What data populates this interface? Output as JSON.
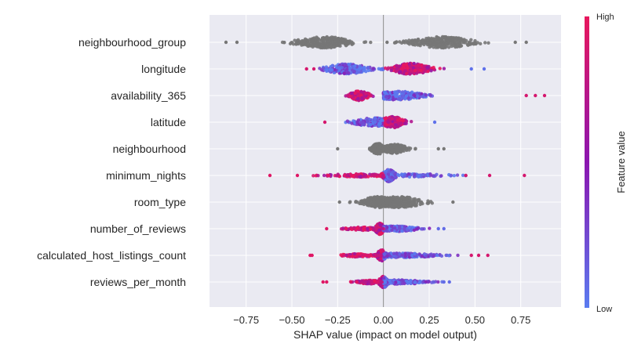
{
  "chart_data": {
    "type": "scatter",
    "subtype": "shap-beeswarm",
    "title": "",
    "xlabel": "SHAP value (impact on model output)",
    "ylabel": "",
    "xlim": [
      -0.95,
      0.97
    ],
    "xticks": [
      -0.75,
      -0.5,
      -0.25,
      0.0,
      0.25,
      0.5,
      0.75
    ],
    "xtick_labels": [
      "−0.75",
      "−0.50",
      "−0.25",
      "0.00",
      "0.25",
      "0.50",
      "0.75"
    ],
    "grid": true,
    "colorbar": {
      "title": "Feature value",
      "high_label": "High",
      "low_label": "Low",
      "high_color": "#e8175d",
      "mid_color": "#8b16b0",
      "low_color": "#5a7bf0"
    },
    "features": [
      {
        "name": "neighbourhood_group",
        "colored": false,
        "clusters": [
          {
            "center": -0.32,
            "spread": 0.09,
            "height": 0.42,
            "min": -0.86,
            "max": -0.05,
            "count": 260
          },
          {
            "center": 0.32,
            "spread": 0.1,
            "height": 0.42,
            "min": 0.05,
            "max": 0.78,
            "count": 260
          }
        ],
        "outliers": [
          -0.86,
          -0.8,
          0.02,
          0.72,
          0.78
        ]
      },
      {
        "name": "longitude",
        "colored": true,
        "clusters": [
          {
            "center": -0.2,
            "spread": 0.07,
            "height": 0.38,
            "min": -0.42,
            "max": 0.05,
            "count": 220
          },
          {
            "center": 0.15,
            "spread": 0.06,
            "height": 0.42,
            "min": -0.05,
            "max": 0.55,
            "count": 220
          }
        ],
        "outliers": [
          -0.42,
          -0.38,
          0.48,
          0.55
        ]
      },
      {
        "name": "availability_365",
        "colored": true,
        "clusters": [
          {
            "center": -0.13,
            "spread": 0.03,
            "height": 0.38,
            "min": -0.25,
            "max": -0.02,
            "count": 170
          },
          {
            "center": 0.08,
            "spread": 0.09,
            "height": 0.32,
            "min": 0.0,
            "max": 0.88,
            "count": 260
          }
        ],
        "outliers": [
          0.78,
          0.83,
          0.88
        ]
      },
      {
        "name": "latitude",
        "colored": true,
        "clusters": [
          {
            "center": -0.05,
            "spread": 0.07,
            "height": 0.32,
            "min": -0.33,
            "max": 0.05,
            "count": 180
          },
          {
            "center": 0.05,
            "spread": 0.04,
            "height": 0.42,
            "min": -0.05,
            "max": 0.3,
            "count": 200
          }
        ],
        "outliers": [
          -0.32,
          0.28
        ]
      },
      {
        "name": "neighbourhood",
        "colored": false,
        "clusters": [
          {
            "center": -0.03,
            "spread": 0.02,
            "height": 0.42,
            "min": -0.25,
            "max": 0.02,
            "count": 160
          },
          {
            "center": 0.06,
            "spread": 0.04,
            "height": 0.35,
            "min": 0.0,
            "max": 0.33,
            "count": 180
          }
        ],
        "outliers": [
          -0.25,
          0.3,
          0.33
        ]
      },
      {
        "name": "minimum_nights",
        "colored": true,
        "clusters": [
          {
            "center": 0.03,
            "spread": 0.02,
            "height": 0.46,
            "min": -0.1,
            "max": 0.1,
            "count": 230
          },
          {
            "center": -0.15,
            "spread": 0.1,
            "height": 0.12,
            "min": -0.5,
            "max": 0.0,
            "count": 120
          },
          {
            "center": 0.2,
            "spread": 0.1,
            "height": 0.12,
            "min": 0.1,
            "max": 0.45,
            "count": 80
          }
        ],
        "outliers": [
          -0.62,
          -0.47,
          0.45,
          0.58,
          0.77
        ]
      },
      {
        "name": "room_type",
        "colored": false,
        "clusters": [
          {
            "center": -0.03,
            "spread": 0.05,
            "height": 0.42,
            "min": -0.24,
            "max": 0.05,
            "count": 230
          },
          {
            "center": 0.08,
            "spread": 0.08,
            "height": 0.42,
            "min": 0.0,
            "max": 0.4,
            "count": 230
          }
        ],
        "outliers": [
          -0.24,
          0.38
        ]
      },
      {
        "name": "number_of_reviews",
        "colored": true,
        "clusters": [
          {
            "center": -0.02,
            "spread": 0.015,
            "height": 0.42,
            "min": -0.1,
            "max": 0.02,
            "count": 150
          },
          {
            "center": 0.06,
            "spread": 0.08,
            "height": 0.2,
            "min": 0.0,
            "max": 0.33,
            "count": 180
          },
          {
            "center": -0.12,
            "spread": 0.05,
            "height": 0.12,
            "min": -0.23,
            "max": 0.0,
            "count": 70
          }
        ],
        "outliers": [
          -0.31,
          0.3,
          0.33
        ]
      },
      {
        "name": "calculated_host_listings_count",
        "colored": true,
        "clusters": [
          {
            "center": -0.01,
            "spread": 0.015,
            "height": 0.42,
            "min": -0.06,
            "max": 0.05,
            "count": 150
          },
          {
            "center": 0.1,
            "spread": 0.12,
            "height": 0.16,
            "min": 0.0,
            "max": 0.42,
            "count": 200
          },
          {
            "center": -0.13,
            "spread": 0.06,
            "height": 0.12,
            "min": -0.24,
            "max": 0.0,
            "count": 90
          }
        ],
        "outliers": [
          -0.4,
          -0.39,
          0.48,
          0.52,
          0.57
        ]
      },
      {
        "name": "reviews_per_month",
        "colored": true,
        "clusters": [
          {
            "center": 0.0,
            "spread": 0.015,
            "height": 0.42,
            "min": -0.06,
            "max": 0.05,
            "count": 160
          },
          {
            "center": 0.1,
            "spread": 0.08,
            "height": 0.16,
            "min": 0.0,
            "max": 0.36,
            "count": 150
          },
          {
            "center": -0.08,
            "spread": 0.04,
            "height": 0.14,
            "min": -0.18,
            "max": 0.0,
            "count": 80
          }
        ],
        "outliers": [
          -0.33,
          -0.31,
          0.33,
          0.36
        ]
      }
    ]
  }
}
